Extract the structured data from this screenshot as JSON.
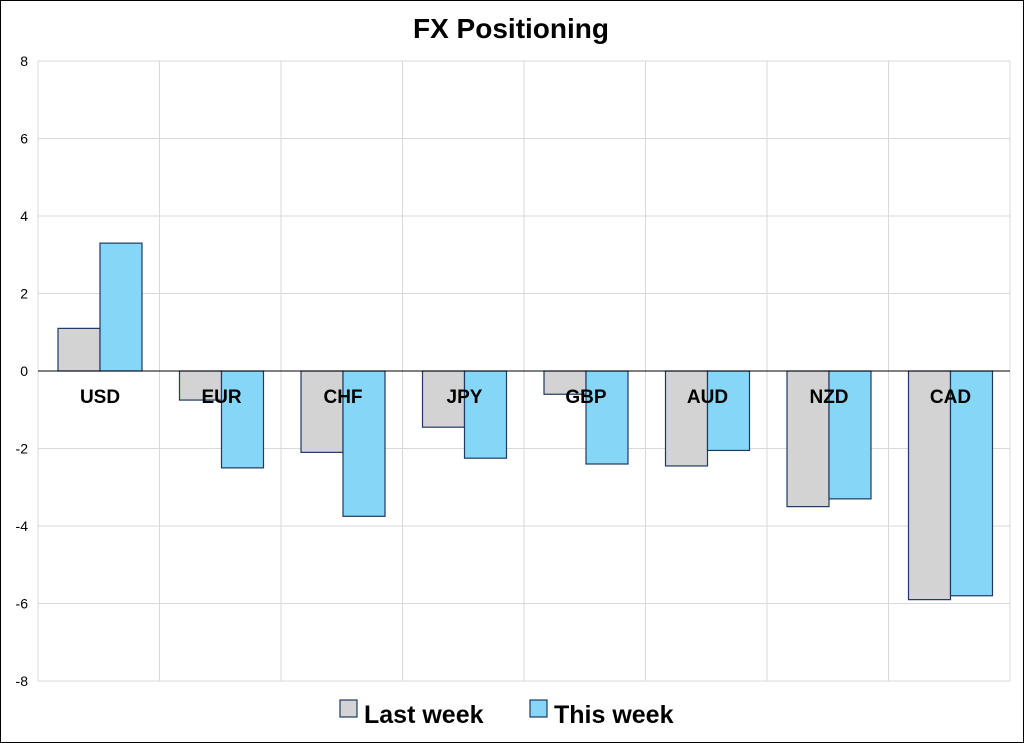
{
  "chart_data": {
    "type": "bar",
    "title": "FX Positioning",
    "xlabel": "",
    "ylabel": "",
    "categories": [
      "USD",
      "EUR",
      "CHF",
      "JPY",
      "GBP",
      "AUD",
      "NZD",
      "CAD"
    ],
    "series": [
      {
        "name": "Last week",
        "color": "#d3d3d3",
        "values": [
          1.1,
          -0.75,
          -2.1,
          -1.45,
          -0.6,
          -2.45,
          -3.5,
          -5.9
        ]
      },
      {
        "name": "This week",
        "color": "#86d6f7",
        "values": [
          3.3,
          -2.5,
          -3.75,
          -2.25,
          -2.4,
          -2.05,
          -3.3,
          -5.8
        ]
      }
    ],
    "ylim": [
      -8,
      8
    ],
    "yticks": [
      8,
      6,
      4,
      2,
      0,
      -2,
      -4,
      -6,
      -8
    ],
    "grid": true,
    "legend_position": "bottom",
    "bar_border_color": "#1f3864"
  }
}
